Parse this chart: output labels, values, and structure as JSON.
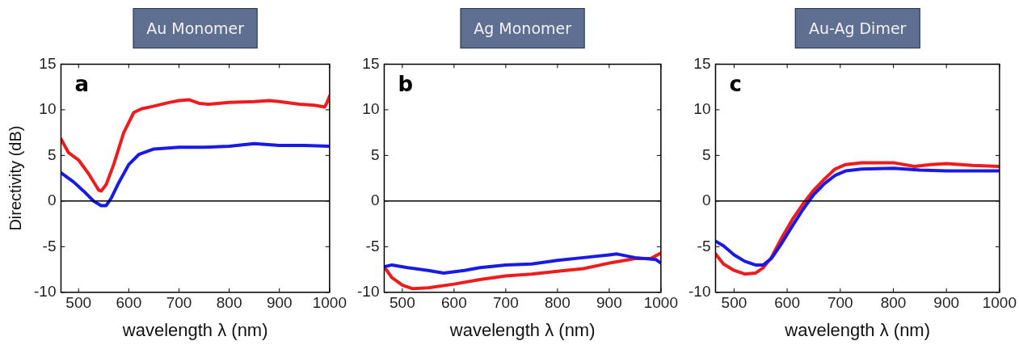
{
  "chart_data": [
    {
      "type": "line",
      "title": "Au Monomer",
      "xlabel": "wavelength λ (nm)",
      "ylabel": "Directivity (dB)",
      "annotations": [
        "a"
      ],
      "xlim": [
        465,
        1000
      ],
      "ylim": [
        -10,
        15
      ],
      "xticks": [
        500,
        600,
        700,
        800,
        900,
        1000
      ],
      "yticks": [
        -10,
        -5,
        0,
        5,
        10,
        15
      ],
      "ref_lines": [
        {
          "axis": "y",
          "value": 0,
          "color": "#000000"
        }
      ],
      "series": [
        {
          "color": "#ee1c1c",
          "x": [
            465,
            480,
            500,
            520,
            540,
            545,
            555,
            570,
            590,
            610,
            625,
            650,
            680,
            700,
            720,
            740,
            760,
            800,
            850,
            880,
            900,
            940,
            970,
            990,
            995,
            1000
          ],
          "values": [
            6.8,
            5.3,
            4.5,
            3,
            1.2,
            1.1,
            1.8,
            4,
            7.5,
            9.7,
            10.1,
            10.4,
            10.8,
            11,
            11.1,
            10.7,
            10.6,
            10.8,
            10.9,
            11,
            10.9,
            10.6,
            10.5,
            10.3,
            10.8,
            11.5
          ]
        },
        {
          "color": "#1a1ae6",
          "x": [
            465,
            490,
            510,
            530,
            545,
            555,
            565,
            580,
            600,
            620,
            650,
            700,
            750,
            800,
            850,
            900,
            950,
            1000
          ],
          "values": [
            3.1,
            2.1,
            1.1,
            0,
            -0.5,
            -0.5,
            0.3,
            2,
            4,
            5.1,
            5.7,
            5.9,
            5.9,
            6,
            6.3,
            6.1,
            6.1,
            6
          ]
        }
      ]
    },
    {
      "type": "line",
      "title": "Ag Monomer",
      "xlabel": "wavelength λ (nm)",
      "annotations": [
        "b"
      ],
      "xlim": [
        465,
        1000
      ],
      "ylim": [
        -10,
        15
      ],
      "xticks": [
        500,
        600,
        700,
        800,
        900,
        1000
      ],
      "yticks": [
        -10,
        -5,
        0,
        5,
        10,
        15
      ],
      "ref_lines": [
        {
          "axis": "y",
          "value": 0,
          "color": "#000000"
        }
      ],
      "series": [
        {
          "color": "#1a1ae6",
          "x": [
            465,
            480,
            510,
            550,
            580,
            620,
            650,
            700,
            750,
            800,
            850,
            900,
            915,
            950,
            990,
            1000
          ],
          "values": [
            -7.2,
            -7,
            -7.3,
            -7.6,
            -7.9,
            -7.6,
            -7.3,
            -7,
            -6.9,
            -6.5,
            -6.2,
            -5.9,
            -5.8,
            -6.2,
            -6.4,
            -6.8
          ]
        },
        {
          "color": "#ee1c1c",
          "x": [
            465,
            480,
            500,
            520,
            550,
            600,
            650,
            700,
            750,
            800,
            850,
            900,
            950,
            980,
            990,
            1000
          ],
          "values": [
            -7.2,
            -8.4,
            -9.2,
            -9.6,
            -9.5,
            -9.1,
            -8.6,
            -8.2,
            -8,
            -7.7,
            -7.4,
            -6.8,
            -6.3,
            -6.3,
            -6,
            -5.7
          ]
        }
      ]
    },
    {
      "type": "line",
      "title": "Au-Ag Dimer",
      "xlabel": "wavelength λ (nm)",
      "annotations": [
        "c"
      ],
      "xlim": [
        465,
        1000
      ],
      "ylim": [
        -10,
        15
      ],
      "xticks": [
        500,
        600,
        700,
        800,
        900,
        1000
      ],
      "yticks": [
        -10,
        -5,
        0,
        5,
        10,
        15
      ],
      "ref_lines": [
        {
          "axis": "y",
          "value": 0,
          "color": "#000000"
        }
      ],
      "series": [
        {
          "color": "#1a1ae6",
          "x": [
            465,
            480,
            500,
            520,
            540,
            555,
            570,
            590,
            610,
            630,
            650,
            670,
            690,
            710,
            740,
            800,
            850,
            900,
            950,
            1000
          ],
          "values": [
            -4.4,
            -4.9,
            -5.9,
            -6.6,
            -7,
            -7,
            -6.3,
            -4.6,
            -2.7,
            -0.9,
            0.7,
            1.9,
            2.8,
            3.3,
            3.5,
            3.6,
            3.4,
            3.3,
            3.3,
            3.3
          ]
        },
        {
          "color": "#ee1c1c",
          "x": [
            465,
            480,
            500,
            520,
            540,
            555,
            570,
            590,
            610,
            630,
            650,
            670,
            690,
            710,
            740,
            800,
            840,
            870,
            900,
            950,
            1000
          ],
          "values": [
            -5.8,
            -6.9,
            -7.6,
            -8,
            -7.9,
            -7.3,
            -6.2,
            -4,
            -2,
            -0.3,
            1.2,
            2.4,
            3.5,
            4,
            4.2,
            4.2,
            3.8,
            4,
            4.1,
            3.9,
            3.8
          ]
        }
      ]
    }
  ]
}
